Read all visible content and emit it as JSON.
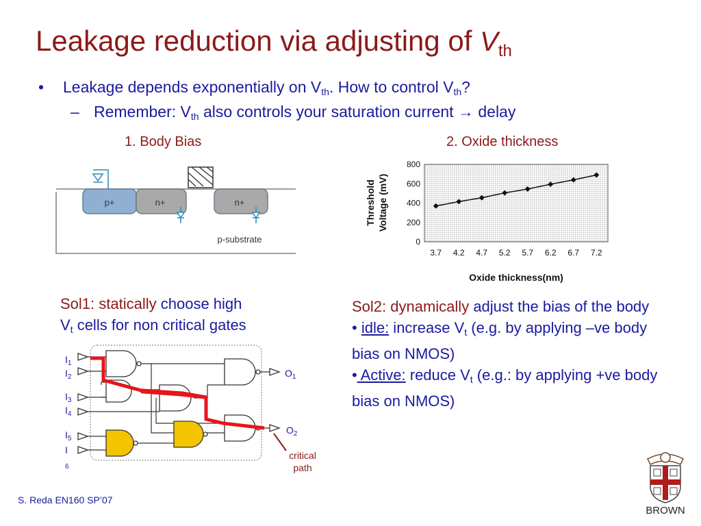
{
  "title": {
    "main": "Leakage reduction via adjusting of ",
    "var": "V",
    "sub": "th"
  },
  "bullets": {
    "b1_a": "Leakage depends exponentially on V",
    "b1_sub1": "th",
    "b1_b": ".  How to control V",
    "b1_sub2": "th",
    "b1_c": "?",
    "b2_a": "Remember: V",
    "b2_sub": "th",
    "b2_b": " also controls your saturation current ",
    "b2_arrow": "→",
    "b2_c": " delay"
  },
  "body_bias": {
    "label": "1. Body Bias",
    "regions": {
      "p_plus": "p+",
      "n_plus_1": "n+",
      "n_plus_2": "n+",
      "substrate": "p-substrate"
    }
  },
  "oxide": {
    "label": "2. Oxide thickness"
  },
  "chart_data": {
    "type": "line",
    "x": [
      3.7,
      4.2,
      4.7,
      5.2,
      5.7,
      6.2,
      6.7,
      7.2
    ],
    "series": [
      {
        "values": [
          370,
          415,
          455,
          505,
          545,
          595,
          640,
          690
        ]
      }
    ],
    "categories": [
      "3.7",
      "4.2",
      "4.7",
      "5.2",
      "5.7",
      "6.2",
      "6.7",
      "7.2"
    ],
    "yticks": [
      "0",
      "200",
      "400",
      "600",
      "800"
    ],
    "ylim": [
      0,
      800
    ],
    "xlabel": "Oxide thickness(nm)",
    "ylabel_line1": "Threshold",
    "ylabel_line2": "Voltage (mV)",
    "grid": true
  },
  "sol1": {
    "l1_a": "Sol1: ",
    "l1_b": "statically",
    "l1_c": " choose high",
    "l2_a": "V",
    "l2_sub": "t",
    "l2_b": " cells for non critical gates"
  },
  "sol2": {
    "l1_a": "Sol2: ",
    "l1_b": "dynamically",
    "l1_c": " adjust the bias of the body",
    "idle_bullet": "• ",
    "idle": "idle:",
    "idle_a": " increase V",
    "idle_sub": "t",
    "idle_b": " (e.g. by applying –ve body bias on NMOS)",
    "active_bullet": "•",
    "active": " Active:",
    "active_a": " reduce V",
    "active_sub": "t",
    "active_b": " (e.g.: by applying +ve body bias on NMOS)"
  },
  "circuit": {
    "inputs": [
      {
        "letter": "I",
        "sub": "1"
      },
      {
        "letter": "I",
        "sub": "2"
      },
      {
        "letter": "I",
        "sub": "3"
      },
      {
        "letter": "I",
        "sub": "4"
      },
      {
        "letter": "I",
        "sub": "5"
      },
      {
        "letter": "I",
        "sub": "6"
      }
    ],
    "outputs": [
      {
        "letter": "O",
        "sub": "1"
      },
      {
        "letter": "O",
        "sub": "2"
      }
    ],
    "critical_line1": "critical",
    "critical_line2": "path",
    "colors": {
      "critical": "#e8141b",
      "high_vt_gate": "#f5c400"
    }
  },
  "footer": "S. Reda EN160 SP’07",
  "logo": {
    "text": "BROWN"
  }
}
